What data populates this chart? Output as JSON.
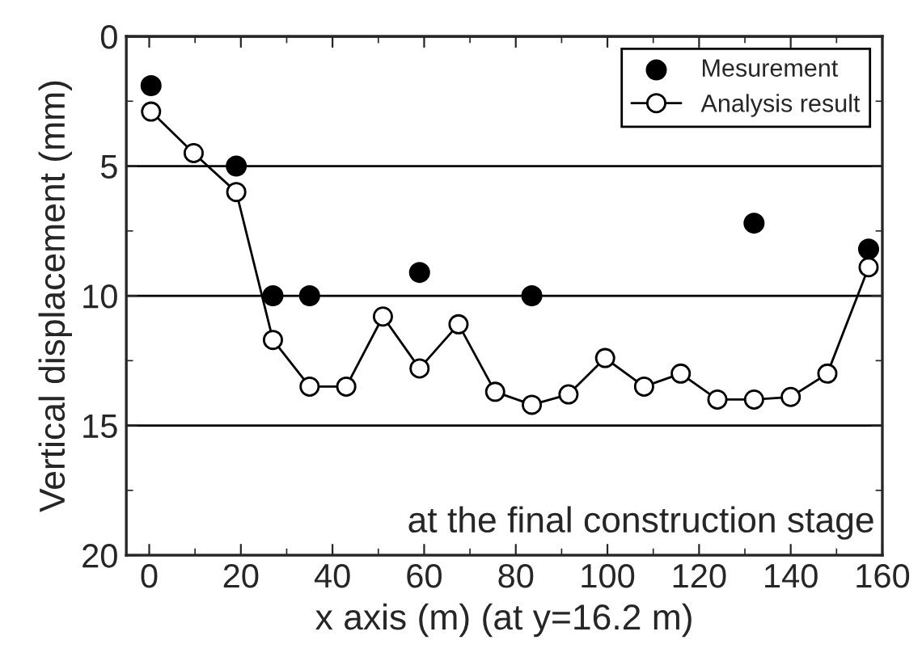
{
  "chart_data": {
    "type": "scatter",
    "xlabel": "x axis (m) (at y=16.2 m)",
    "ylabel": "Vertical displacement (mm)",
    "xlim": [
      -5,
      160
    ],
    "xticks": [
      0,
      20,
      40,
      60,
      80,
      100,
      120,
      140,
      160
    ],
    "ylim": [
      20,
      0
    ],
    "yticks": [
      0,
      5,
      10,
      15,
      20
    ],
    "grid": "y",
    "legend": "top right",
    "annotations": [
      "at the final construction stage"
    ],
    "series": [
      {
        "name": "Mesurement",
        "marker": "circle",
        "color": "#000000",
        "x": [
          0.4,
          19,
          27,
          35,
          59,
          83.5,
          132,
          157
        ],
        "values": [
          1.9,
          5.0,
          10.0,
          10.0,
          9.1,
          10.0,
          7.2,
          8.2
        ]
      },
      {
        "name": "Analysis result",
        "type": "line",
        "marker": "circle",
        "color": "#000000",
        "x": [
          0.4,
          9.7,
          19,
          27,
          35,
          43,
          51,
          59,
          67.5,
          75.5,
          83.5,
          91.5,
          99.5,
          108,
          116,
          124,
          132,
          140,
          148,
          157
        ],
        "values": [
          2.9,
          4.5,
          6.0,
          11.7,
          13.5,
          13.5,
          10.8,
          12.8,
          11.1,
          13.7,
          14.2,
          13.8,
          12.4,
          13.5,
          13.0,
          14.0,
          14.0,
          13.9,
          13.0,
          8.9
        ]
      }
    ]
  }
}
